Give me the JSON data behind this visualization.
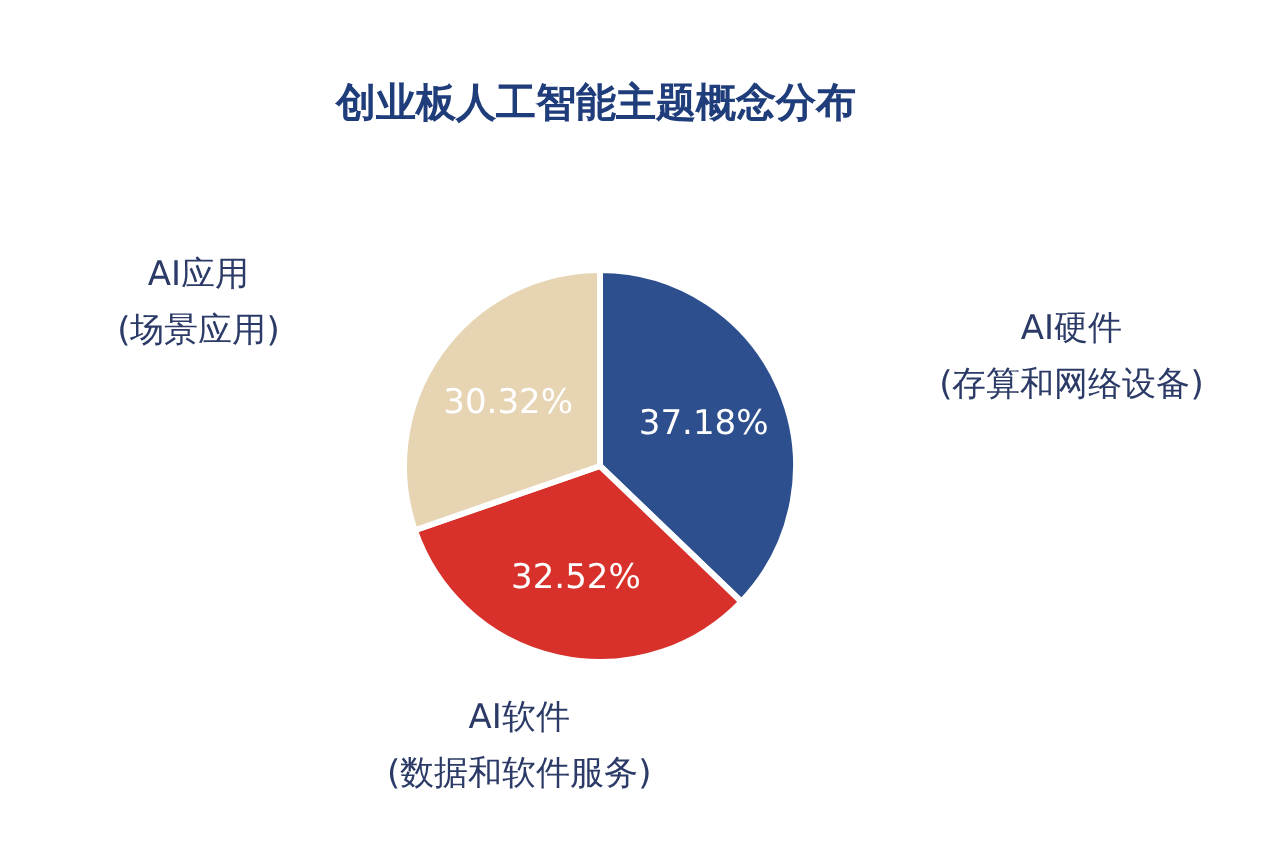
{
  "chart_data": {
    "type": "pie",
    "title": "创业板人工智能主题概念分布",
    "categories": [
      "AI硬件\n(存算和网络设备)",
      "AI软件\n(数据和软件服务)",
      "AI应用\n(场景应用)"
    ],
    "values": [
      37.18,
      32.52,
      30.32
    ],
    "colors": [
      "#2d4f8e",
      "#d8312b",
      "#e6d4b3"
    ],
    "value_labels": [
      "37.18%",
      "32.52%",
      "30.32%"
    ]
  }
}
